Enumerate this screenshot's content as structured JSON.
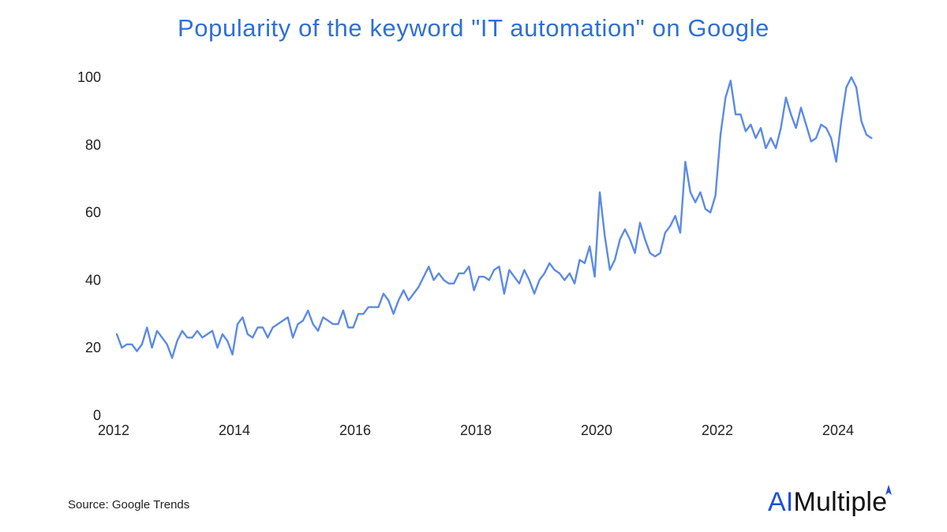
{
  "colors": {
    "line": "#5b8ae6",
    "title": "#2f6fd6",
    "brand_accent": "#1f4ed8"
  },
  "footer": {
    "source": "Source: Google Trends"
  },
  "brand": {
    "logo_prefix": "AI",
    "logo_suffix": "Multiple"
  },
  "chart_data": {
    "type": "line",
    "title": "Popularity of the keyword \"IT automation\" on Google",
    "xlabel": "",
    "ylabel": "",
    "xlim": [
      2012,
      2025
    ],
    "ylim": [
      0,
      100
    ],
    "y_ticks": [
      0,
      20,
      40,
      60,
      80,
      100
    ],
    "x_ticks": [
      2012,
      2014,
      2016,
      2018,
      2020,
      2022,
      2024
    ],
    "grid": false,
    "series": [
      {
        "name": "IT automation",
        "start_year": 2012,
        "points_per_year": 12,
        "values": [
          24,
          20,
          21,
          21,
          19,
          21,
          26,
          20,
          25,
          23,
          21,
          17,
          22,
          25,
          23,
          23,
          25,
          23,
          24,
          25,
          20,
          24,
          22,
          18,
          27,
          29,
          24,
          23,
          26,
          26,
          23,
          26,
          27,
          28,
          29,
          23,
          27,
          28,
          31,
          27,
          25,
          29,
          28,
          27,
          27,
          31,
          26,
          26,
          30,
          30,
          32,
          32,
          32,
          36,
          34,
          30,
          34,
          37,
          34,
          36,
          38,
          41,
          44,
          40,
          42,
          40,
          39,
          39,
          42,
          42,
          44,
          37,
          41,
          41,
          40,
          43,
          44,
          36,
          43,
          41,
          39,
          43,
          40,
          36,
          40,
          42,
          45,
          43,
          42,
          40,
          42,
          39,
          46,
          45,
          50,
          41,
          66,
          53,
          43,
          46,
          52,
          55,
          52,
          48,
          57,
          52,
          48,
          47,
          48,
          54,
          56,
          59,
          54,
          75,
          66,
          63,
          66,
          61,
          60,
          65,
          83,
          94,
          99,
          89,
          89,
          84,
          86,
          82,
          85,
          79,
          82,
          79,
          85,
          94,
          89,
          85,
          91,
          86,
          81,
          82,
          86,
          85,
          82,
          75,
          87,
          97,
          100,
          97,
          87,
          83,
          82
        ]
      }
    ]
  }
}
